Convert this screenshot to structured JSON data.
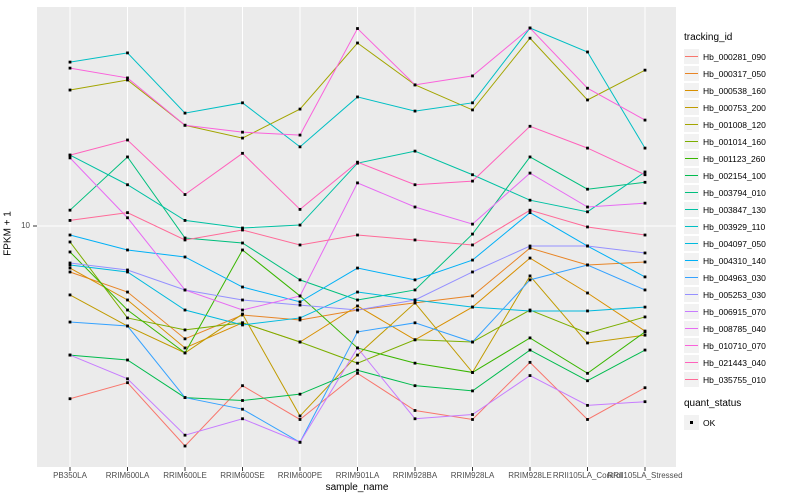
{
  "figure": {
    "panel_bg": "#EBEBEB",
    "grid_color": "#FFFFFF",
    "tick_color": "#333333",
    "tick_text_color": "#4D4D4D",
    "y_axis": {
      "title": "FPKM + 1",
      "tick_label": "10"
    },
    "x_axis": {
      "title": "sample_name"
    },
    "legend": {
      "tracking_title": "tracking_id",
      "quant_title": "quant_status",
      "quant_items": [
        {
          "label": "OK",
          "shape": "black-square"
        }
      ]
    }
  },
  "chart_data": {
    "type": "line",
    "xlabel": "sample_name",
    "ylabel": "FPKM + 1",
    "y_scale": "log10",
    "y_ticks": [
      10
    ],
    "ylim_log10": [
      -0.1,
      2.0
    ],
    "grid": "white-on-gray",
    "legend_position": "right",
    "point_shape": "square-black",
    "x_categories": [
      "PB350LA",
      "RRIM600LA",
      "RRIM600LE",
      "RRIM600SE",
      "RRIM600PE",
      "RRIM901LA",
      "RRIM928BA",
      "RRIM928LA",
      "RRIM928LE",
      "RRII105LA_Control",
      "RRII105LA_Stressed"
    ],
    "series": [
      {
        "name": "Hb_000281_090",
        "color": "#F8766D",
        "values": [
          1.64,
          1.94,
          1.0,
          1.88,
          1.32,
          2.14,
          1.45,
          1.32,
          2.4,
          1.32,
          1.84
        ]
      },
      {
        "name": "Hb_000317_050",
        "color": "#E88526",
        "values": [
          6.18,
          5.01,
          3.07,
          3.94,
          3.74,
          4.15,
          4.47,
          4.81,
          7.94,
          6.65,
          6.86
        ]
      },
      {
        "name": "Hb_000538_160",
        "color": "#D89000",
        "values": [
          6.44,
          4.61,
          2.79,
          3.63,
          2.97,
          4.33,
          3.04,
          4.28,
          7.15,
          4.96,
          3.33
        ]
      },
      {
        "name": "Hb_000753_200",
        "color": "#C09B00",
        "values": [
          4.86,
          3.51,
          2.65,
          3.98,
          1.37,
          2.59,
          4.47,
          2.16,
          5.93,
          2.94,
          3.19
        ]
      },
      {
        "name": "Hb_001008_120",
        "color": "#A3A500",
        "values": [
          41.5,
          46.1,
          28.7,
          25.1,
          34.0,
          67.9,
          43.8,
          33.7,
          71.4,
          37.4,
          51.1
        ]
      },
      {
        "name": "Hb_001014_160",
        "color": "#7CAE00",
        "values": [
          8.46,
          3.82,
          3.37,
          3.63,
          2.97,
          2.38,
          3.04,
          2.97,
          4.15,
          3.26,
          3.86
        ]
      },
      {
        "name": "Hb_001123_260",
        "color": "#39B600",
        "values": [
          7.62,
          4.15,
          2.65,
          7.78,
          4.81,
          2.79,
          2.38,
          2.16,
          3.1,
          2.14,
          3.3
        ]
      },
      {
        "name": "Hb_002154_100",
        "color": "#00BB4E",
        "values": [
          2.59,
          2.46,
          1.66,
          1.61,
          1.72,
          2.21,
          1.88,
          1.78,
          2.73,
          1.98,
          2.73
        ]
      },
      {
        "name": "Hb_003794_010",
        "color": "#00BF7D",
        "values": [
          11.8,
          20.6,
          8.82,
          8.37,
          5.69,
          4.61,
          5.12,
          9.19,
          20.6,
          14.7,
          15.8
        ]
      },
      {
        "name": "Hb_003847_130",
        "color": "#00C1A3",
        "values": [
          21.0,
          15.4,
          10.6,
          9.79,
          10.1,
          19.3,
          21.9,
          17.1,
          13.1,
          11.6,
          17.6
        ]
      },
      {
        "name": "Hb_003929_110",
        "color": "#00BFC4",
        "values": [
          55.6,
          61.2,
          32.6,
          36.3,
          22.9,
          38.6,
          33.3,
          36.3,
          79.4,
          61.8,
          22.6
        ]
      },
      {
        "name": "Hb_004097_050",
        "color": "#00BADE",
        "values": [
          6.65,
          6.18,
          4.15,
          3.55,
          3.82,
          5.01,
          4.61,
          4.28,
          4.11,
          4.11,
          4.28
        ]
      },
      {
        "name": "Hb_004310_140",
        "color": "#00B0F6",
        "values": [
          9.1,
          7.78,
          7.23,
          5.28,
          4.52,
          6.44,
          5.69,
          7.0,
          11.5,
          8.11,
          5.87
        ]
      },
      {
        "name": "Hb_004963_030",
        "color": "#35A2FF",
        "values": [
          3.66,
          3.51,
          1.66,
          1.47,
          1.04,
          3.3,
          3.63,
          2.97,
          5.69,
          6.65,
          5.12
        ]
      },
      {
        "name": "Hb_005253_030",
        "color": "#9590FF",
        "values": [
          6.79,
          6.31,
          5.12,
          4.61,
          4.37,
          4.15,
          4.61,
          6.18,
          8.11,
          8.11,
          7.54
        ]
      },
      {
        "name": "Hb_006915_070",
        "color": "#C77CFF",
        "values": [
          2.59,
          2.02,
          1.12,
          1.33,
          1.04,
          2.79,
          1.33,
          1.39,
          2.09,
          1.53,
          1.59
        ]
      },
      {
        "name": "Hb_008785_040",
        "color": "#E76BF3",
        "values": [
          20.4,
          10.9,
          5.12,
          4.15,
          4.81,
          15.7,
          12.2,
          10.2,
          17.4,
          12.2,
          12.7
        ]
      },
      {
        "name": "Hb_010710_070",
        "color": "#FA62DB",
        "values": [
          52.2,
          47.1,
          28.7,
          26.7,
          25.9,
          79.0,
          43.8,
          48.1,
          79.4,
          42.3,
          30.3
        ]
      },
      {
        "name": "Hb_021443_040",
        "color": "#FF62BC",
        "values": [
          21.0,
          24.6,
          13.9,
          21.4,
          11.9,
          19.5,
          15.4,
          16.0,
          28.4,
          22.6,
          17.1
        ]
      },
      {
        "name": "Hb_035755_010",
        "color": "#FF6A98",
        "values": [
          10.6,
          11.5,
          8.64,
          9.59,
          8.2,
          9.1,
          8.64,
          8.2,
          11.8,
          9.9,
          9.1
        ]
      }
    ]
  }
}
